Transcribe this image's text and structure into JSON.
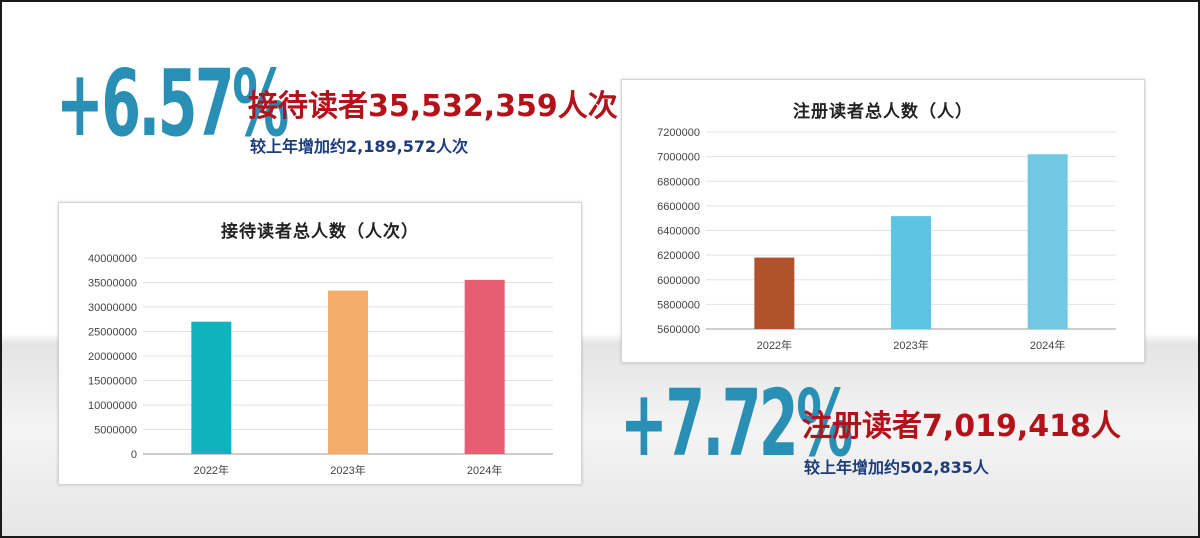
{
  "stat1": {
    "percent": "+6.57%",
    "headline": "接待读者35,532,359人次",
    "subline": "较上年增加约2,189,572人次"
  },
  "stat2": {
    "percent": "+7.72%",
    "headline": "注册读者7,019,418人",
    "subline": "较上年增加约502,835人"
  },
  "colors": {
    "percent": "#2a8fb5",
    "headline": "#b3121a",
    "subline": "#1d3d7a"
  },
  "chart_data": [
    {
      "type": "bar",
      "title": "接待读者总人数（人次）",
      "categories": [
        "2022年",
        "2023年",
        "2024年"
      ],
      "values": [
        27000000,
        33343000,
        35532359
      ],
      "bar_colors": [
        "#0fb3bb",
        "#f4ac69",
        "#e65e72"
      ],
      "ylim": [
        0,
        40000000
      ],
      "yticks": [
        "0",
        "5000000",
        "10000000",
        "15000000",
        "20000000",
        "25000000",
        "30000000",
        "35000000",
        "40000000"
      ],
      "ytick_values": [
        0,
        5000000,
        10000000,
        15000000,
        20000000,
        25000000,
        30000000,
        35000000,
        40000000
      ],
      "grid": true,
      "xlabel": "",
      "ylabel": ""
    },
    {
      "type": "bar",
      "title": "注册读者总人数（人）",
      "categories": [
        "2022年",
        "2023年",
        "2024年"
      ],
      "values": [
        6180000,
        6516583,
        7019418
      ],
      "bar_colors": [
        "#b0522b",
        "#5ec4e4",
        "#72c8e0"
      ],
      "ylim": [
        5600000,
        7200000
      ],
      "yticks": [
        "5600000",
        "5800000",
        "6000000",
        "6200000",
        "6400000",
        "6600000",
        "6800000",
        "7000000",
        "7200000"
      ],
      "ytick_values": [
        5600000,
        5800000,
        6000000,
        6200000,
        6400000,
        6600000,
        6800000,
        7000000,
        7200000
      ],
      "grid": true,
      "xlabel": "",
      "ylabel": ""
    }
  ]
}
